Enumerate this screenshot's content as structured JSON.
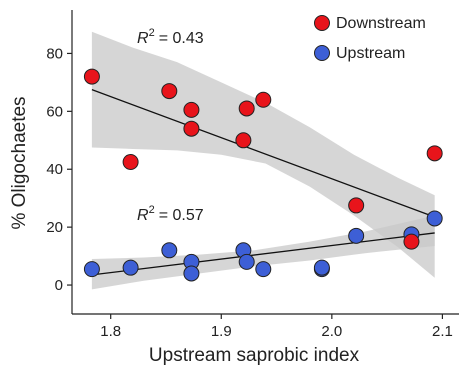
{
  "chart_data": {
    "type": "scatter",
    "xlabel": "Upstream saprobic index",
    "ylabel": "% Oligochaetes",
    "xlim": [
      1.765,
      2.115
    ],
    "ylim": [
      -10,
      95
    ],
    "xticks": [
      1.8,
      1.9,
      2.0,
      2.1
    ],
    "yticks": [
      0,
      20,
      40,
      60,
      80
    ],
    "xtick_labels": [
      "1.8",
      "1.9",
      "2.0",
      "2.1"
    ],
    "ytick_labels": [
      "0",
      "20",
      "40",
      "60",
      "80"
    ],
    "grid": false,
    "legend_position": "top-right",
    "series": [
      {
        "name": "Downstream",
        "color": "#e8141b",
        "r2_label": "= 0.43",
        "points": [
          {
            "x": 1.783,
            "y": 72
          },
          {
            "x": 1.818,
            "y": 42.5
          },
          {
            "x": 1.853,
            "y": 67
          },
          {
            "x": 1.873,
            "y": 60.5
          },
          {
            "x": 1.873,
            "y": 54
          },
          {
            "x": 1.92,
            "y": 50
          },
          {
            "x": 1.923,
            "y": 61
          },
          {
            "x": 1.938,
            "y": 64
          },
          {
            "x": 2.022,
            "y": 27.5
          },
          {
            "x": 2.072,
            "y": 15
          },
          {
            "x": 2.093,
            "y": 45.5
          }
        ],
        "fit": {
          "x": [
            1.783,
            2.093
          ],
          "y": [
            67.5,
            23.5
          ]
        },
        "ci_upper": [
          {
            "x": 1.783,
            "y": 87.5
          },
          {
            "x": 1.82,
            "y": 82
          },
          {
            "x": 1.86,
            "y": 77
          },
          {
            "x": 1.9,
            "y": 70
          },
          {
            "x": 1.94,
            "y": 63
          },
          {
            "x": 1.98,
            "y": 54.5
          },
          {
            "x": 2.02,
            "y": 45
          },
          {
            "x": 2.06,
            "y": 37
          },
          {
            "x": 2.093,
            "y": 31
          }
        ],
        "ci_lower": [
          {
            "x": 1.783,
            "y": 47.5
          },
          {
            "x": 1.82,
            "y": 47
          },
          {
            "x": 1.86,
            "y": 46.5
          },
          {
            "x": 1.9,
            "y": 45
          },
          {
            "x": 1.94,
            "y": 42
          },
          {
            "x": 1.98,
            "y": 34
          },
          {
            "x": 2.02,
            "y": 24
          },
          {
            "x": 2.06,
            "y": 13
          },
          {
            "x": 2.093,
            "y": 2.5
          }
        ]
      },
      {
        "name": "Upstream",
        "color": "#3d5fd6",
        "r2_label": "= 0.57",
        "points": [
          {
            "x": 1.783,
            "y": 5.5
          },
          {
            "x": 1.818,
            "y": 6
          },
          {
            "x": 1.853,
            "y": 12
          },
          {
            "x": 1.873,
            "y": 8
          },
          {
            "x": 1.873,
            "y": 4
          },
          {
            "x": 1.92,
            "y": 12
          },
          {
            "x": 1.923,
            "y": 8
          },
          {
            "x": 1.938,
            "y": 5.5
          },
          {
            "x": 1.991,
            "y": 5.5
          },
          {
            "x": 1.991,
            "y": 6
          },
          {
            "x": 2.022,
            "y": 17
          },
          {
            "x": 2.072,
            "y": 17.5
          },
          {
            "x": 2.093,
            "y": 23
          }
        ],
        "fit": {
          "x": [
            1.783,
            2.093
          ],
          "y": [
            3.5,
            18
          ]
        },
        "ci_upper": [
          {
            "x": 1.783,
            "y": 9
          },
          {
            "x": 1.83,
            "y": 9.5
          },
          {
            "x": 1.88,
            "y": 10.5
          },
          {
            "x": 1.93,
            "y": 12
          },
          {
            "x": 1.98,
            "y": 15
          },
          {
            "x": 2.03,
            "y": 18.5
          },
          {
            "x": 2.093,
            "y": 24
          }
        ],
        "ci_lower": [
          {
            "x": 1.783,
            "y": -1.5
          },
          {
            "x": 1.83,
            "y": 1.5
          },
          {
            "x": 1.88,
            "y": 4
          },
          {
            "x": 1.93,
            "y": 6.5
          },
          {
            "x": 1.98,
            "y": 8.5
          },
          {
            "x": 2.03,
            "y": 11
          },
          {
            "x": 2.093,
            "y": 13.5
          }
        ]
      }
    ]
  }
}
